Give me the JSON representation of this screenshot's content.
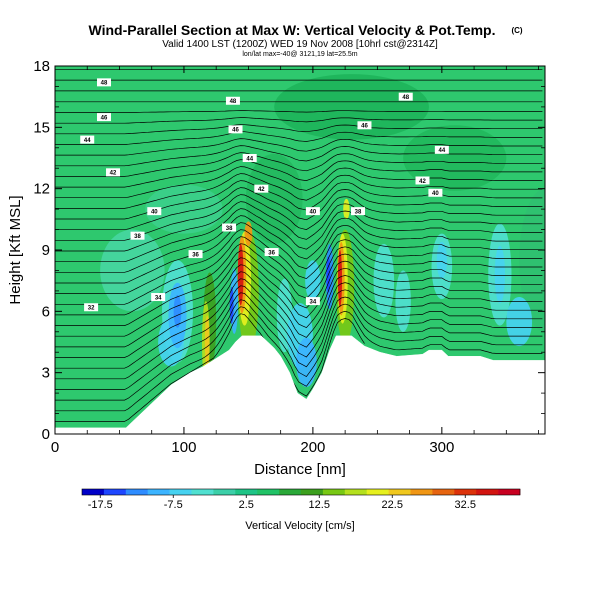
{
  "chart_data": {
    "type": "heatmap",
    "title": "Wind-Parallel Section at Max W: Vertical Velocity & Pot.Temp.",
    "title_mark": "(C)",
    "subtitle": "Valid 1400 LST (1200Z) WED 19 Nov 2008 [10hrl cst@2314Z]",
    "info_line": "lon/lat max=-40@ 3121,19 lat=25.5m",
    "xlabel": "Distance [nm]",
    "ylabel": "Height [Kft MSL]",
    "xlim": [
      0,
      380
    ],
    "ylim": [
      0,
      18
    ],
    "x_ticks": [
      "0",
      "100",
      "200",
      "300"
    ],
    "y_ticks": [
      "0",
      "3",
      "6",
      "9",
      "12",
      "15",
      "18"
    ],
    "colorbar": {
      "label": "Vertical Velocity [cm/s]",
      "range": [
        -20,
        40
      ],
      "tick_labels": [
        "-17.5",
        "-7.5",
        "2.5",
        "12.5",
        "22.5",
        "32.5"
      ],
      "tick_values": [
        -17.5,
        -7.5,
        2.5,
        12.5,
        22.5,
        32.5
      ],
      "colors": [
        "#0000c8",
        "#1e46ff",
        "#2e8cff",
        "#3cb4ff",
        "#46d2f0",
        "#50e0d0",
        "#3ccfa8",
        "#1ec486",
        "#20c266",
        "#2aa838",
        "#3ca01e",
        "#78c814",
        "#b4e01e",
        "#e6f01e",
        "#f0c81e",
        "#f09614",
        "#e66410",
        "#dc320a",
        "#d21410",
        "#c80020"
      ]
    },
    "contour_labels": [
      "48",
      "48",
      "48",
      "46",
      "46",
      "46",
      "44",
      "44",
      "44",
      "42",
      "42",
      "42",
      "40",
      "40",
      "40",
      "38",
      "38",
      "38",
      "36",
      "36",
      "34",
      "34",
      "32"
    ],
    "terrain": [
      {
        "x": 0,
        "y": 0.3
      },
      {
        "x": 55,
        "y": 0.3
      },
      {
        "x": 60,
        "y": 0.6
      },
      {
        "x": 65,
        "y": 0.9
      },
      {
        "x": 70,
        "y": 1.2
      },
      {
        "x": 75,
        "y": 1.5
      },
      {
        "x": 80,
        "y": 1.8
      },
      {
        "x": 85,
        "y": 2.1
      },
      {
        "x": 90,
        "y": 2.4
      },
      {
        "x": 95,
        "y": 2.6
      },
      {
        "x": 100,
        "y": 2.8
      },
      {
        "x": 105,
        "y": 3.0
      },
      {
        "x": 115,
        "y": 3.3
      },
      {
        "x": 125,
        "y": 3.7
      },
      {
        "x": 135,
        "y": 4.1
      },
      {
        "x": 140,
        "y": 4.5
      },
      {
        "x": 145,
        "y": 4.8
      },
      {
        "x": 160,
        "y": 4.8
      },
      {
        "x": 165,
        "y": 4.5
      },
      {
        "x": 170,
        "y": 4.2
      },
      {
        "x": 175,
        "y": 3.8
      },
      {
        "x": 182,
        "y": 3.0
      },
      {
        "x": 188,
        "y": 2.0
      },
      {
        "x": 195,
        "y": 1.7
      },
      {
        "x": 200,
        "y": 2.2
      },
      {
        "x": 207,
        "y": 3.0
      },
      {
        "x": 213,
        "y": 4.1
      },
      {
        "x": 218,
        "y": 4.8
      },
      {
        "x": 230,
        "y": 4.8
      },
      {
        "x": 240,
        "y": 4.3
      },
      {
        "x": 252,
        "y": 4.0
      },
      {
        "x": 265,
        "y": 3.8
      },
      {
        "x": 285,
        "y": 3.9
      },
      {
        "x": 290,
        "y": 4.1
      },
      {
        "x": 300,
        "y": 4.1
      },
      {
        "x": 305,
        "y": 3.8
      },
      {
        "x": 330,
        "y": 3.8
      },
      {
        "x": 340,
        "y": 3.6
      },
      {
        "x": 380,
        "y": 3.6
      }
    ]
  }
}
